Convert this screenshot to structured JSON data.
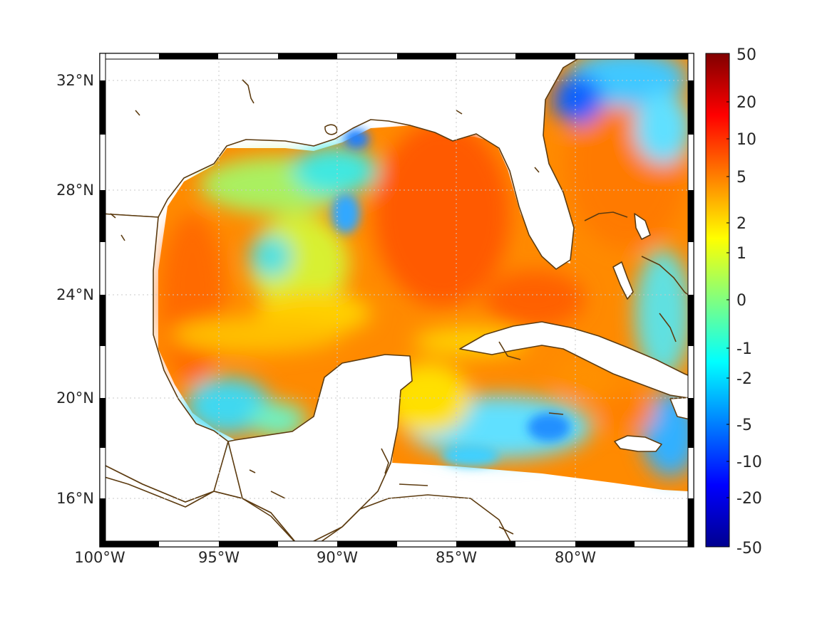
{
  "map": {
    "lat_labels": [
      "32°N",
      "28°N",
      "24°N",
      "20°N",
      "16°N"
    ],
    "lon_labels": [
      "100°W",
      "95°W",
      "90°W",
      "85°W",
      "80°W"
    ],
    "lat_values": [
      32,
      28,
      24,
      20,
      16
    ],
    "lon_values": [
      -100,
      -95,
      -90,
      -85,
      -80
    ],
    "extent": {
      "lon_min": -100,
      "lon_max": -75,
      "lat_min": 14.3,
      "lat_max": 33
    },
    "colormap": "jet",
    "land_color": "#ffffff",
    "coastline_color": "#5c3b10"
  },
  "colorbar": {
    "tick_labels": [
      "50",
      "20",
      "10",
      "5",
      "2",
      "1",
      "0",
      "-1",
      "-2",
      "-5",
      "-10",
      "-20",
      "-50"
    ]
  }
}
